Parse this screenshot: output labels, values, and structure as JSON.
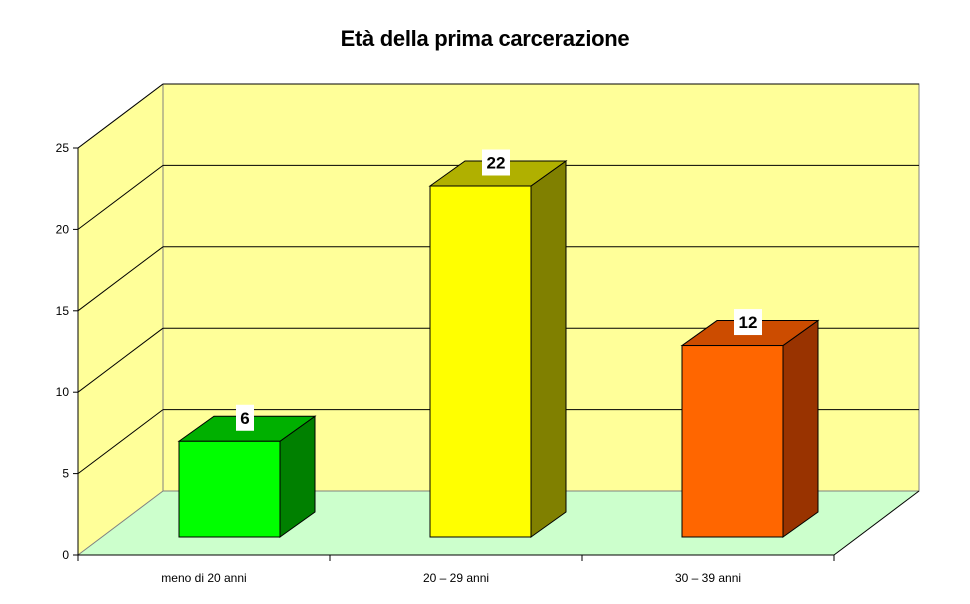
{
  "chart_data": {
    "type": "bar",
    "title": "Età della prima carcerazione",
    "xlabel": "",
    "ylabel": "",
    "categories": [
      "meno di 20 anni",
      "20 – 29 anni",
      "30 – 39 anni"
    ],
    "values": [
      6,
      22,
      12
    ],
    "data_labels": [
      "6",
      "22",
      "12"
    ],
    "ylim": [
      0,
      25
    ],
    "yticks": [
      0,
      5,
      10,
      15,
      20,
      25
    ],
    "grid": true,
    "legend": null,
    "style": "3d-column",
    "colors": {
      "bars_front": [
        "#00ff00",
        "#ffff00",
        "#ff6600"
      ],
      "bars_side": [
        "#008000",
        "#808000",
        "#993300"
      ],
      "bars_top": [
        "#00b000",
        "#b0b000",
        "#cc4c00"
      ],
      "wall": "#ffff99",
      "floor": "#ccffcc",
      "gridline": "#000000",
      "wall_edge": "#808080"
    }
  }
}
